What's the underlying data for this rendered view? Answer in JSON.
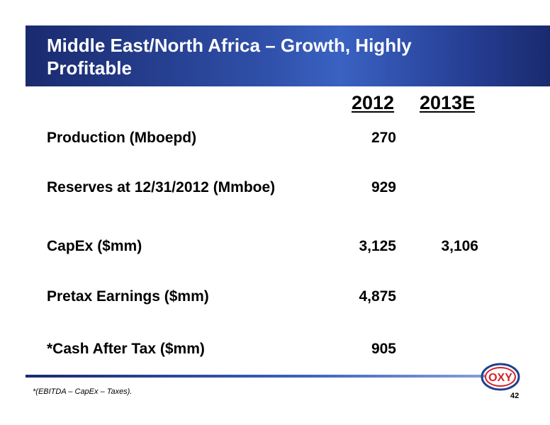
{
  "slide": {
    "title": "Middle East/North Africa – Growth, Highly Profitable",
    "columns": [
      "2012",
      "2013E"
    ],
    "rows": [
      {
        "label": "Production (Mboepd)",
        "v2012": "270",
        "v2013": ""
      },
      {
        "label": "Reserves at 12/31/2012 (Mmboe)",
        "v2012": "929",
        "v2013": ""
      },
      {
        "label": "CapEx ($mm)",
        "v2012": "3,125",
        "v2013": "3,106"
      },
      {
        "label": "Pretax Earnings ($mm)",
        "v2012": "4,875",
        "v2013": ""
      },
      {
        "label": "*Cash After Tax ($mm)",
        "v2012": "905",
        "v2013": ""
      }
    ],
    "footnote": "*(EBITDA – CapEx – Taxes).",
    "page_number": "42",
    "logo_text": "OXY",
    "colors": {
      "title_bar": "#2f4fa8",
      "logo_red": "#d6202a",
      "logo_blue": "#1f3f8f"
    }
  }
}
